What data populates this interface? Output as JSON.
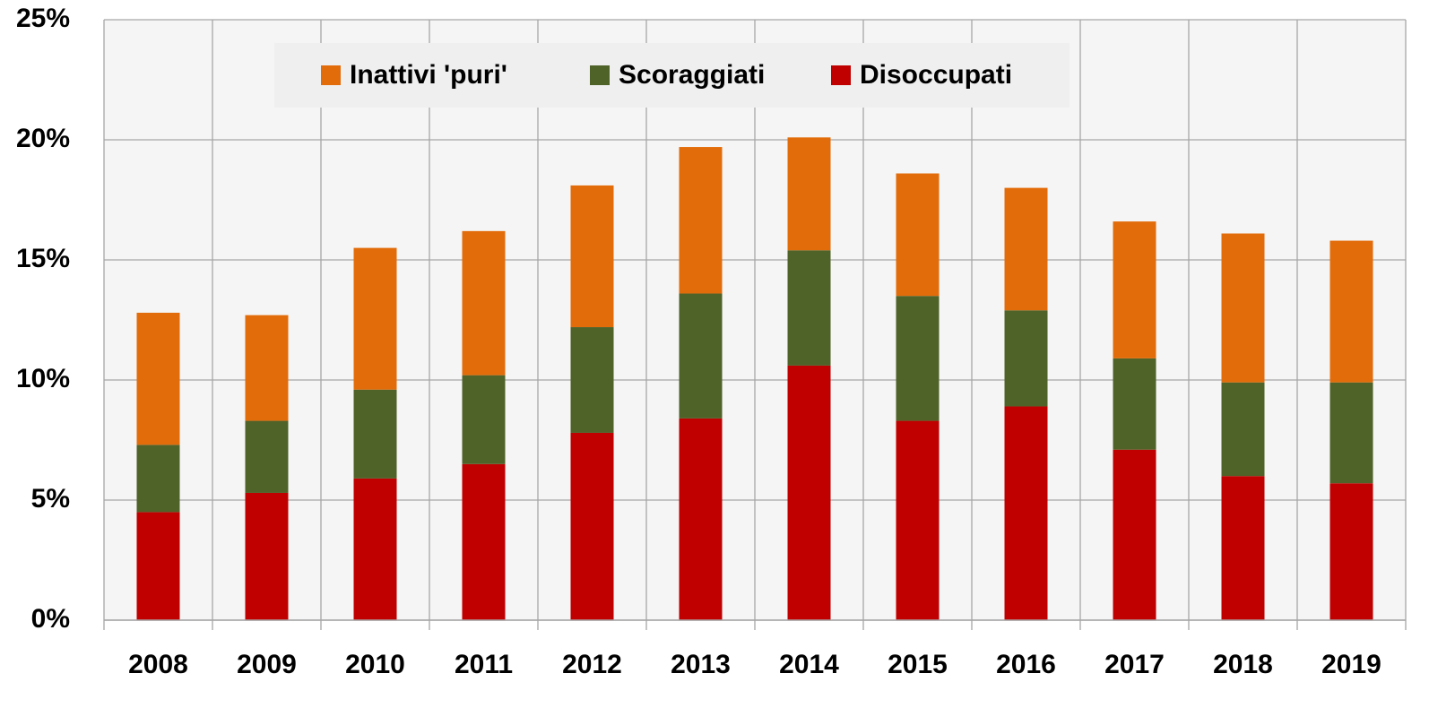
{
  "chart_data": {
    "type": "stacked-bar",
    "categories": [
      "2008",
      "2009",
      "2010",
      "2011",
      "2012",
      "2013",
      "2014",
      "2015",
      "2016",
      "2017",
      "2018",
      "2019"
    ],
    "series": [
      {
        "name": "Inattivi 'puri'",
        "color": "#e36c0a",
        "values": [
          5.5,
          4.4,
          5.9,
          6.0,
          5.9,
          6.1,
          4.7,
          5.1,
          5.1,
          5.7,
          6.2,
          5.9
        ]
      },
      {
        "name": "Scoraggiati",
        "color": "#4f6228",
        "values": [
          2.8,
          3.0,
          3.7,
          3.7,
          4.4,
          5.2,
          4.8,
          5.2,
          4.0,
          3.8,
          3.9,
          4.2
        ]
      },
      {
        "name": "Disoccupati",
        "color": "#c00000",
        "values": [
          4.5,
          5.3,
          5.9,
          6.5,
          7.8,
          8.4,
          10.6,
          8.3,
          8.9,
          7.1,
          6.0,
          5.7
        ]
      }
    ],
    "ylim": [
      0,
      25
    ],
    "yticks": [
      {
        "value": 0,
        "label": "0%"
      },
      {
        "value": 5,
        "label": "5%"
      },
      {
        "value": 10,
        "label": "10%"
      },
      {
        "value": 15,
        "label": "15%"
      },
      {
        "value": 20,
        "label": "20%"
      },
      {
        "value": 25,
        "label": "25%"
      }
    ],
    "grid": true,
    "legend": "top"
  }
}
